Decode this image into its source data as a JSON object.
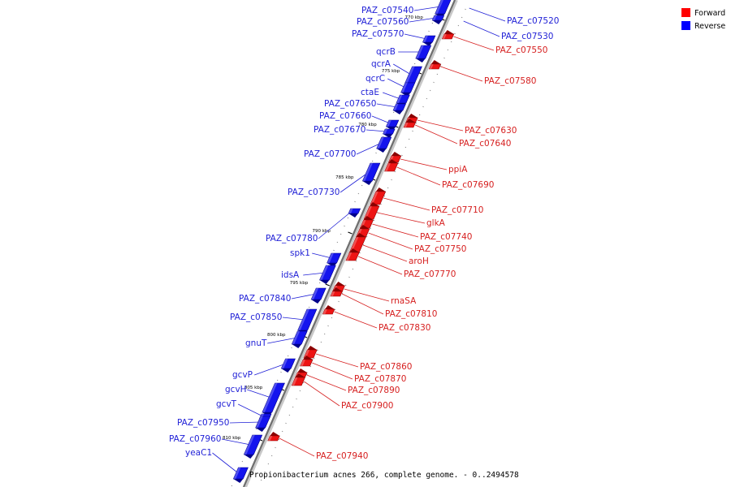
{
  "legend": {
    "items": [
      {
        "label": "Forward",
        "color": "#ff0000"
      },
      {
        "label": "Reverse",
        "color": "#0000ff"
      }
    ]
  },
  "caption": "Propionibacterium acnes 266, complete genome. - 0..2494578",
  "ticks": [
    "770 kbp",
    "775 kbp",
    "780 kbp",
    "785 kbp",
    "790 kbp",
    "795 kbp",
    "800 kbp",
    "805 kbp",
    "810 kbp"
  ],
  "reverse_labels": [
    "PAZ_c07540",
    "PAZ_c07560",
    "PAZ_c07570",
    "qcrB",
    "qcrA",
    "qcrC",
    "ctaE",
    "PAZ_c07650",
    "PAZ_c07660",
    "PAZ_c07670",
    "PAZ_c07700",
    "PAZ_c07730",
    "PAZ_c07780",
    "spk1",
    "idsA",
    "PAZ_c07840",
    "PAZ_c07850",
    "gnuT",
    "gcvP",
    "gcvH",
    "gcvT",
    "PAZ_c07950",
    "PAZ_c07960",
    "yeaC1"
  ],
  "reverse_right_labels": [
    "PAZ_c07520",
    "PAZ_c07530"
  ],
  "forward_labels": [
    "PAZ_c07550",
    "PAZ_c07580",
    "PAZ_c07630",
    "PAZ_c07640",
    "ppiA",
    "PAZ_c07690",
    "PAZ_c07710",
    "glkA",
    "PAZ_c07740",
    "PAZ_c07750",
    "aroH",
    "PAZ_c07770",
    "rnaSA",
    "PAZ_c07810",
    "PAZ_c07830",
    "PAZ_c07860",
    "PAZ_c07870",
    "PAZ_c07890",
    "PAZ_c07900",
    "PAZ_c07940"
  ]
}
